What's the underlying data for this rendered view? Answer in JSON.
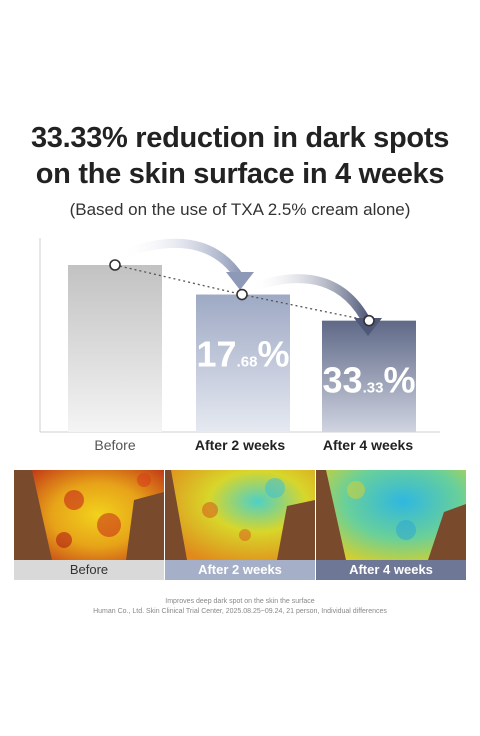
{
  "headline": {
    "line1": "33.33% reduction in dark spots",
    "line2": "on the skin surface in 4 weeks",
    "subtitle": "(Based on the use of TXA 2.5% cream alone)"
  },
  "chart_data": {
    "type": "bar",
    "categories": [
      "Before",
      "After 2 weeks",
      "After 4 weeks"
    ],
    "values": [
      100,
      82.32,
      66.67
    ],
    "reduction_labels": [
      null,
      {
        "main": "17",
        "dec": ".68",
        "unit": "%"
      },
      {
        "main": "33",
        "dec": ".33",
        "unit": "%"
      }
    ],
    "title": "",
    "xlabel": "",
    "ylabel": "",
    "ylim": [
      0,
      100
    ],
    "colors": [
      "#c9c9c9",
      "#a5b0c8",
      "#6e7796"
    ]
  },
  "images": {
    "captions": [
      "Before",
      "After 2 weeks",
      "After 4 weeks"
    ],
    "caption_colors": [
      "#d9d9d9",
      "#a5b0c8",
      "#6e7796"
    ],
    "caption_text_colors": [
      "#333333",
      "#ffffff",
      "#ffffff"
    ]
  },
  "footnote": {
    "line1": "Improves deep  dark spot on the skin  the surface",
    "line2": "Human Co., Ltd. Skin Clinical Trial Center, 2025.08.25~09.24, 21 person, Individual differences"
  }
}
